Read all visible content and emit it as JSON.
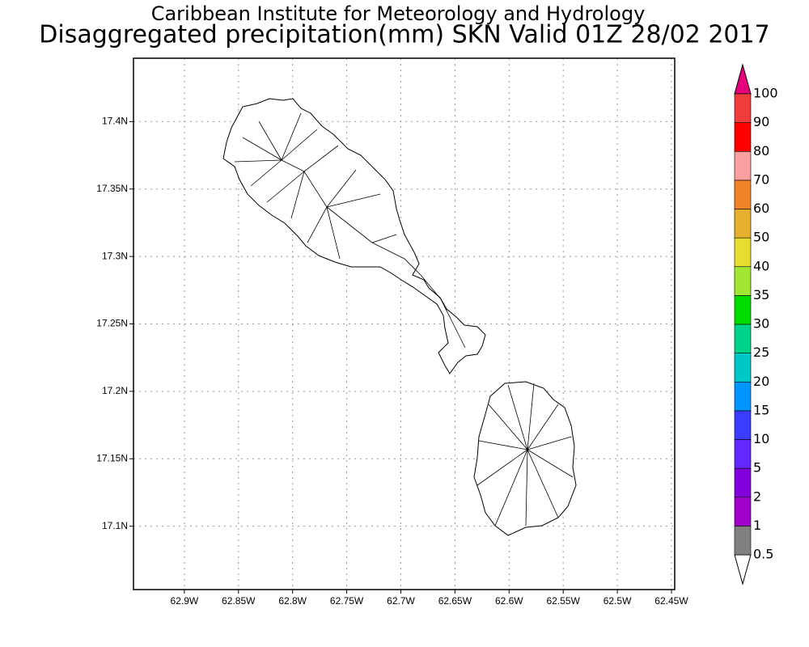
{
  "header": {
    "title": "Caribbean Institute for Meteorology and Hydrology",
    "subtitle": "Disaggregated precipitation(mm) SKN Valid 01Z 28/02 2017"
  },
  "map": {
    "lonlim": [
      -62.947,
      -62.447
    ],
    "latlim": [
      17.053,
      17.447
    ],
    "lon_ticks": [
      {
        "value": -62.9,
        "label": "62.9W"
      },
      {
        "value": -62.85,
        "label": "62.85W"
      },
      {
        "value": -62.8,
        "label": "62.8W"
      },
      {
        "value": -62.75,
        "label": "62.75W"
      },
      {
        "value": -62.7,
        "label": "62.7W"
      },
      {
        "value": -62.65,
        "label": "62.65W"
      },
      {
        "value": -62.6,
        "label": "62.6W"
      },
      {
        "value": -62.55,
        "label": "62.55W"
      },
      {
        "value": -62.5,
        "label": "62.5W"
      },
      {
        "value": -62.45,
        "label": "62.45W"
      }
    ],
    "lat_ticks": [
      {
        "value": 17.4,
        "label": "17.4N"
      },
      {
        "value": 17.35,
        "label": "17.35N"
      },
      {
        "value": 17.3,
        "label": "17.3N"
      },
      {
        "value": 17.25,
        "label": "17.25N"
      },
      {
        "value": 17.2,
        "label": "17.2N"
      },
      {
        "value": 17.15,
        "label": "17.15N"
      },
      {
        "value": 17.1,
        "label": "17.1N"
      }
    ],
    "grid": true
  },
  "colorbar": {
    "levels": [
      0.5,
      1,
      2,
      5,
      10,
      15,
      20,
      25,
      30,
      35,
      40,
      50,
      60,
      70,
      80,
      90,
      100
    ],
    "colors": [
      "#808080",
      "#a000c8",
      "#8200dc",
      "#6428ff",
      "#3c3cff",
      "#0096ff",
      "#00c8c8",
      "#00d28c",
      "#00dc00",
      "#a0e632",
      "#e6dc32",
      "#e6af2d",
      "#f08228",
      "#fa9f9f",
      "#ff0000",
      "#f03c3c"
    ],
    "over_color": "#e6007d",
    "under_color": "#ffffff"
  }
}
